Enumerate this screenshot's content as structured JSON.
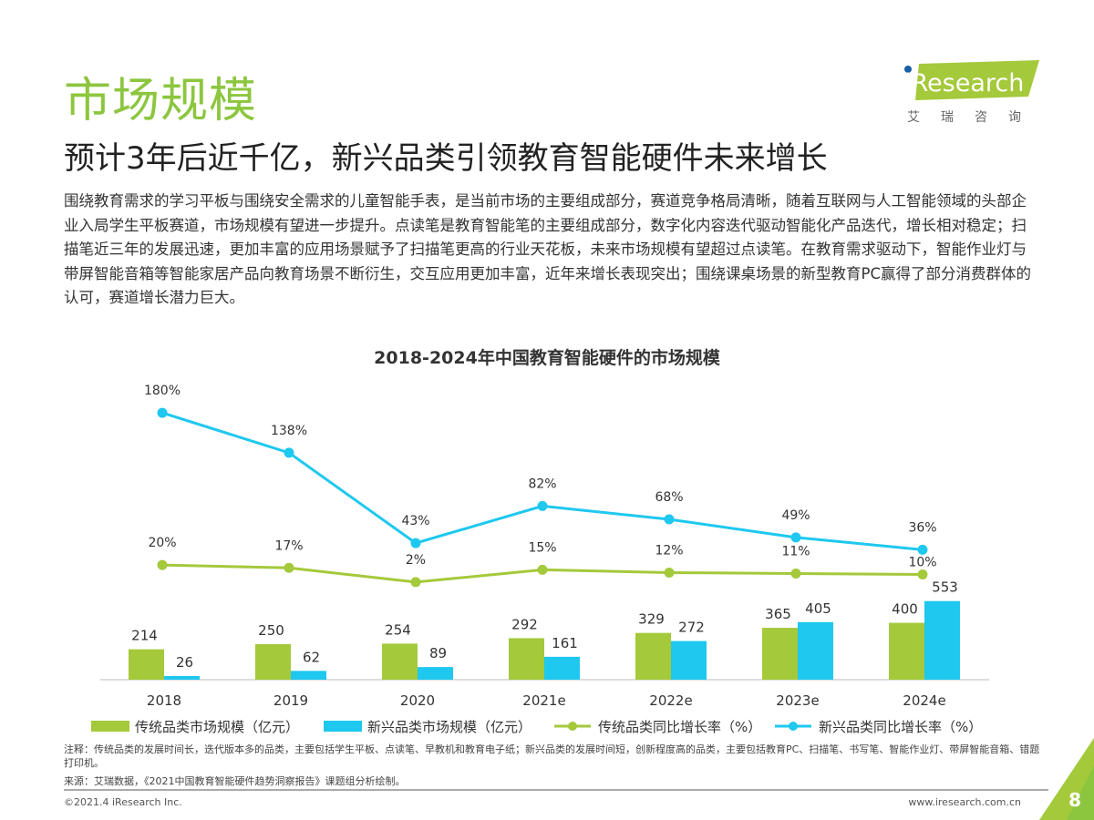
{
  "header": {
    "title": "市场规模",
    "subtitle": "预计3年后近千亿，新兴品类引领教育智能硬件未来增长",
    "logo_text": "iResearch",
    "logo_sub": "艾瑞咨询"
  },
  "body_text": "围绕教育需求的学习平板与围绕安全需求的儿童智能手表，是当前市场的主要组成部分，赛道竞争格局清晰，随着互联网与人工智能领域的头部企业入局学生平板赛道，市场规模有望进一步提升。点读笔是教育智能笔的主要组成部分，数字化内容迭代驱动智能化产品迭代，增长相对稳定；扫描笔近三年的发展迅速，更加丰富的应用场景赋予了扫描笔更高的行业天花板，未来市场规模有望超过点读笔。在教育需求驱动下，智能作业灯与带屏智能音箱等智能家居产品向教育场景不断衍生，交互应用更加丰富，近年来增长表现突出；围绕课桌场景的新型教育PC赢得了部分消费群体的认可，赛道增长潜力巨大。",
  "chart_data": {
    "type": "bar+line",
    "title": "2018-2024年中国教育智能硬件的市场规模",
    "categories": [
      "2018",
      "2019",
      "2020",
      "2021e",
      "2022e",
      "2023e",
      "2024e"
    ],
    "series": [
      {
        "name": "传统品类市场规模（亿元）",
        "kind": "bar",
        "color": "#a4c93a",
        "values": [
          214,
          250,
          254,
          292,
          329,
          365,
          400
        ]
      },
      {
        "name": "新兴品类市场规模（亿元）",
        "kind": "bar",
        "color": "#1ec8ef",
        "values": [
          26,
          62,
          89,
          161,
          272,
          405,
          553
        ]
      },
      {
        "name": "传统品类同比增长率（%）",
        "kind": "line",
        "color": "#a4c93a",
        "values": [
          20,
          17,
          2,
          15,
          12,
          11,
          10
        ]
      },
      {
        "name": "新兴品类同比增长率（%）",
        "kind": "line",
        "color": "#1ec8ef",
        "values": [
          180,
          138,
          43,
          82,
          68,
          49,
          36
        ]
      }
    ],
    "legend": "bottom",
    "grid": false
  },
  "footer": {
    "note": "注释：传统品类的发展时间长，迭代版本多的品类，主要包括学生平板、点读笔、早教机和教育电子纸；新兴品类的发展时间短，创新程度高的品类，主要包括教育PC、扫描笔、书写笔、智能作业灯、带屏智能音箱、错题打印机。",
    "source": "来源：艾瑞数据，《2021中国教育智能硬件趋势洞察报告》课题组分析绘制。",
    "copyright": "©2021.4 iResearch Inc.",
    "site": "www.iresearch.com.cn",
    "page": "8"
  }
}
